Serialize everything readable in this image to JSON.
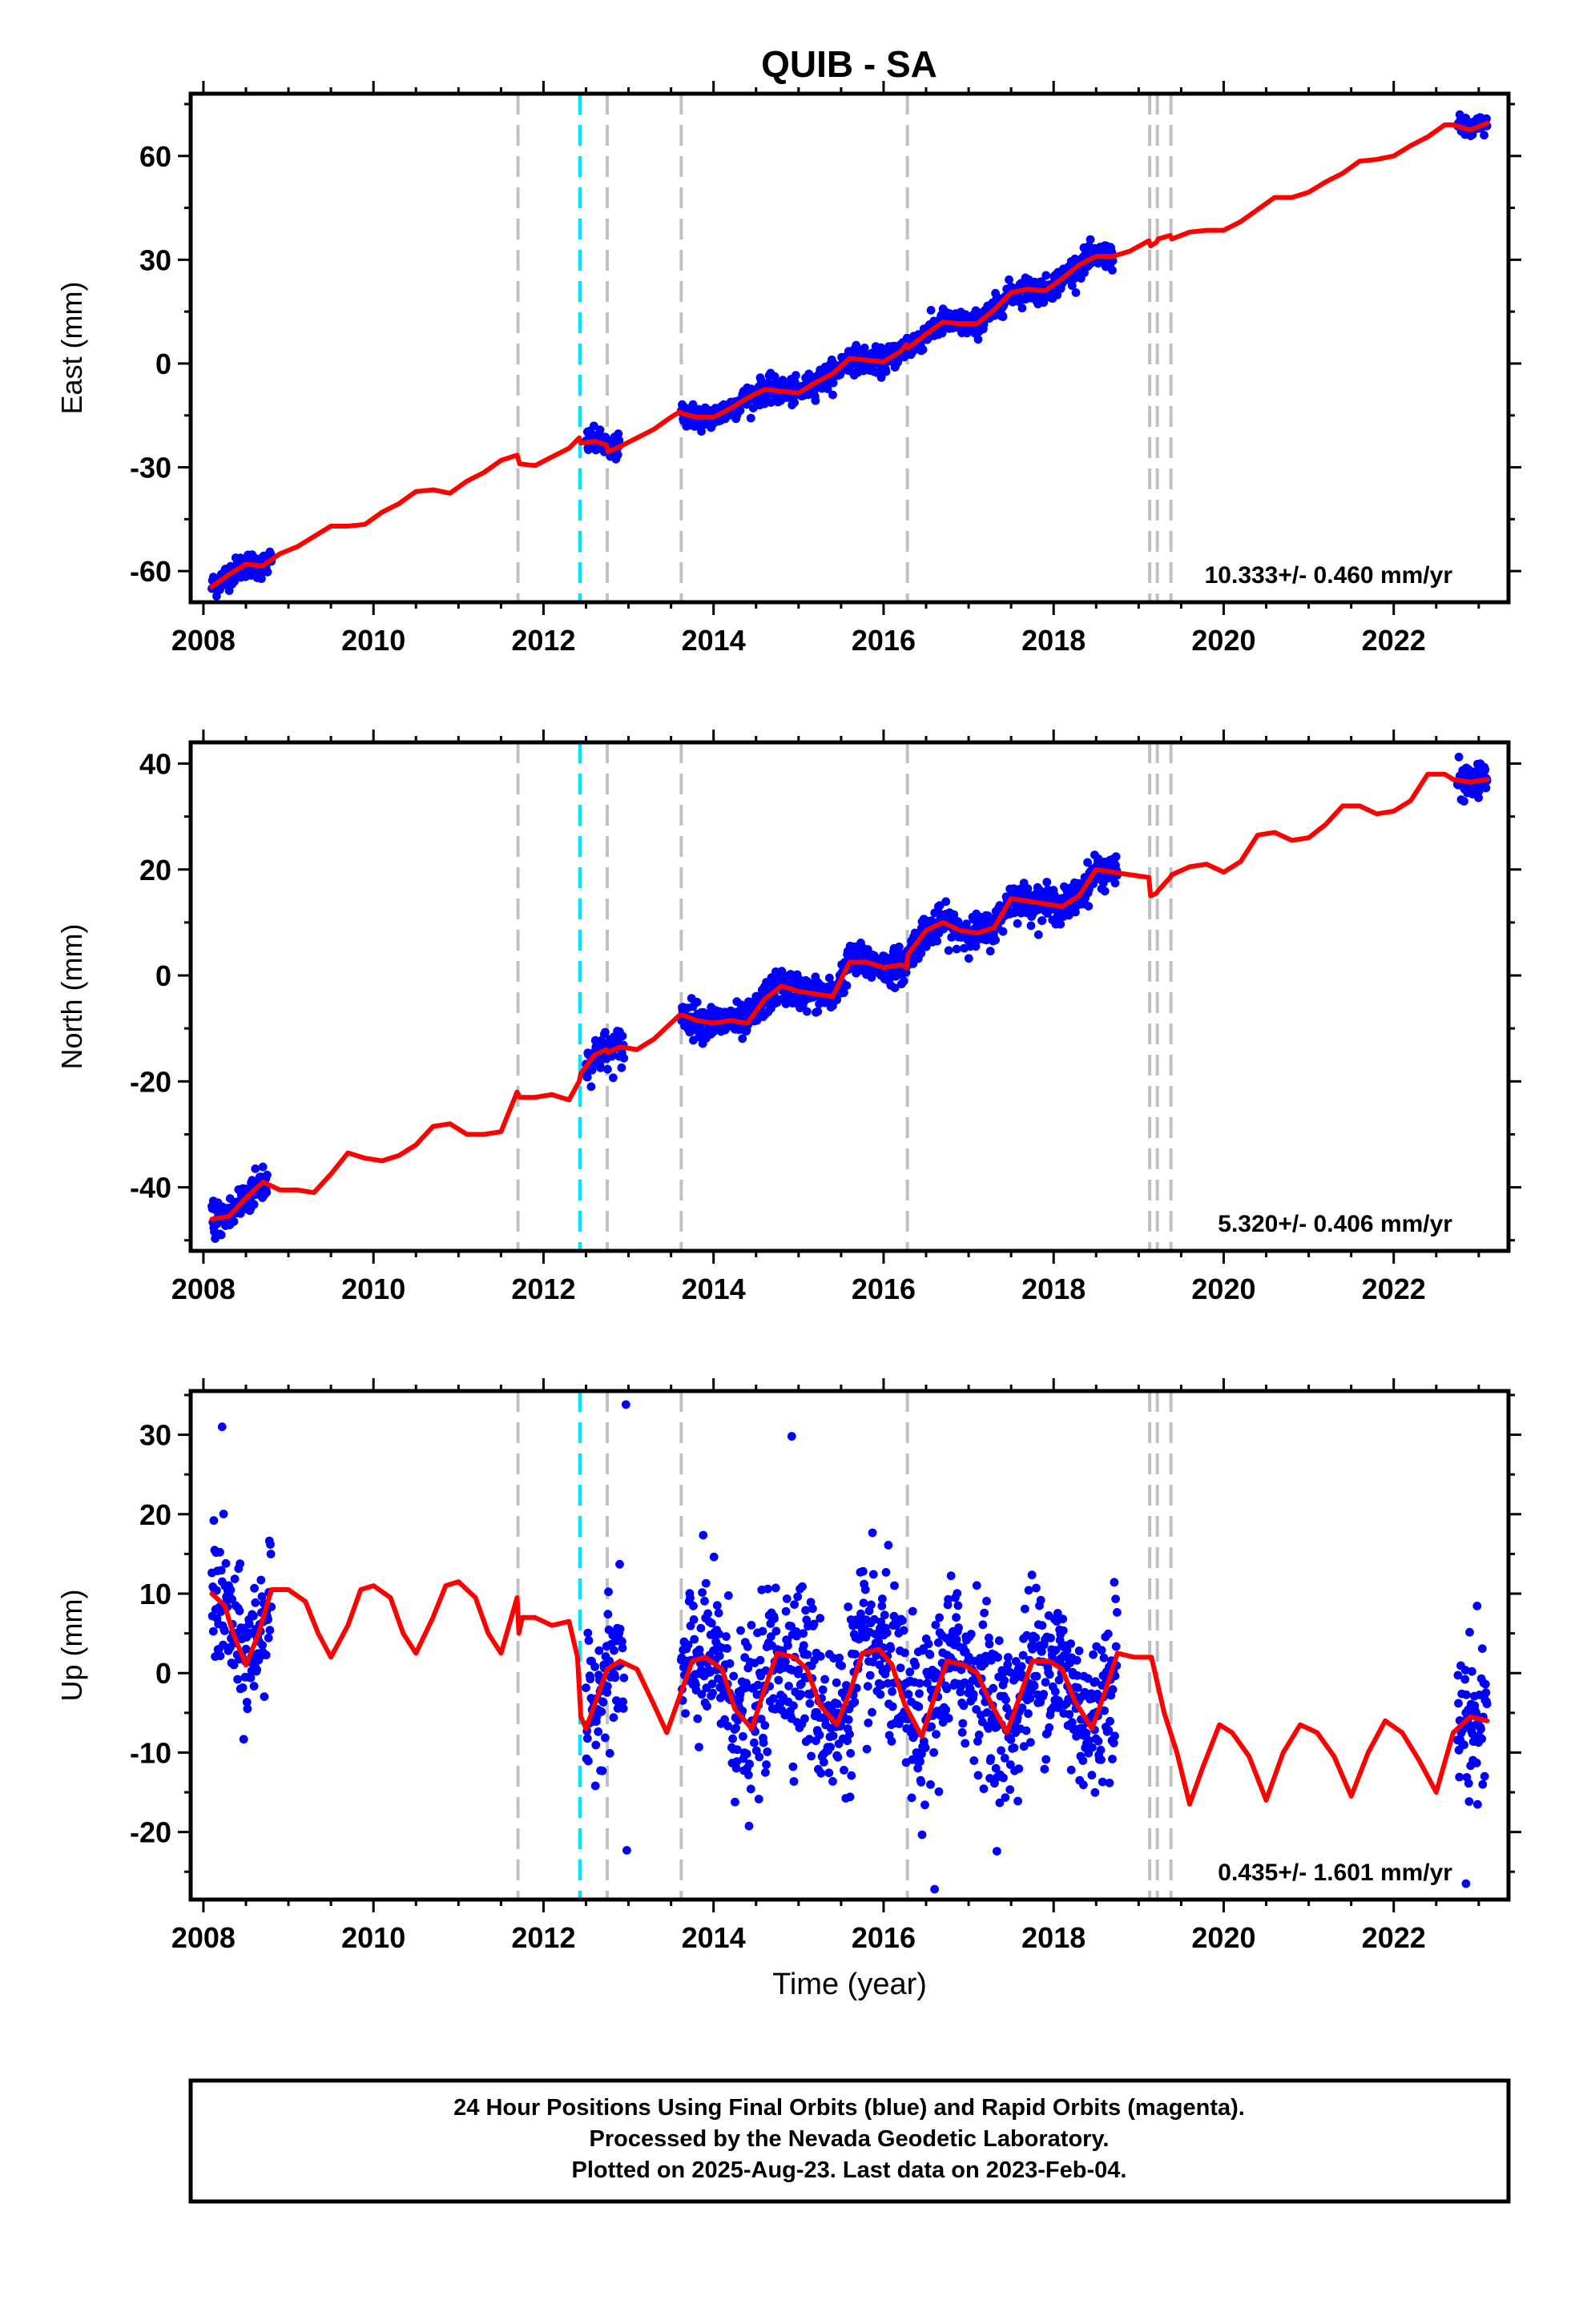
{
  "title": "QUIB - SA",
  "footer": {
    "line1": "24 Hour Positions Using Final Orbits (blue) and Rapid Orbits (magenta).",
    "line2": "Processed by the Nevada Geodetic Laboratory.",
    "line3": "Plotted on 2025-Aug-23. Last data on 2023-Feb-04."
  },
  "colors": {
    "observations": "#0000ff",
    "model": "#ff0000",
    "event_line": "#c0c0c0",
    "antenna_change_line": "#00e5ff"
  },
  "chart_data": [
    {
      "type": "scatter",
      "panel": "east",
      "ylabel": "East (mm)",
      "xlabel": "",
      "rate": "10.333+/- 0.460 mm/yr",
      "rate_value": 10.333,
      "xlim": [
        2007.85,
        2023.35
      ],
      "ylim": [
        -69,
        78
      ],
      "xticks": [
        2008,
        2010,
        2012,
        2014,
        2016,
        2018,
        2020,
        2022
      ],
      "yticks": [
        -60,
        -30,
        0,
        30,
        60
      ],
      "event_lines": [
        2011.7,
        2012.75,
        2013.62,
        2016.28,
        2019.13,
        2019.22,
        2019.38
      ],
      "antenna_lines": [
        2012.43
      ],
      "model": {
        "x": [
          2008.1,
          2008.3,
          2008.5,
          2008.7,
          2008.9,
          2009.1,
          2009.3,
          2009.5,
          2009.7,
          2009.9,
          2010.1,
          2010.3,
          2010.5,
          2010.7,
          2010.9,
          2011.1,
          2011.3,
          2011.5,
          2011.69,
          2011.72,
          2011.9,
          2012.1,
          2012.3,
          2012.42,
          2012.44,
          2012.6,
          2012.74,
          2012.76,
          2012.9,
          2013.1,
          2013.3,
          2013.5,
          2013.6,
          2013.64,
          2013.8,
          2014.0,
          2014.2,
          2014.4,
          2014.6,
          2014.8,
          2015.0,
          2015.2,
          2015.4,
          2015.6,
          2015.8,
          2016.0,
          2016.2,
          2016.27,
          2016.29,
          2016.5,
          2016.7,
          2016.9,
          2017.1,
          2017.3,
          2017.5,
          2017.7,
          2017.9,
          2018.1,
          2018.3,
          2018.5,
          2018.7,
          2018.9,
          2019.12,
          2019.14,
          2019.21,
          2019.23,
          2019.37,
          2019.39,
          2019.6,
          2019.8,
          2020.0,
          2020.2,
          2020.4,
          2020.6,
          2020.8,
          2021.0,
          2021.2,
          2021.4,
          2021.6,
          2021.8,
          2022.0,
          2022.2,
          2022.4,
          2022.6,
          2022.7,
          2022.9,
          2023.1
        ],
        "y": [
          -64.5,
          -61.0,
          -58.0,
          -58.5,
          -55.0,
          -53.0,
          -50.0,
          -47.0,
          -47.0,
          -46.5,
          -43.0,
          -40.5,
          -37.0,
          -36.5,
          -37.5,
          -34.0,
          -31.5,
          -28.0,
          -26.5,
          -29.0,
          -29.5,
          -27.0,
          -24.5,
          -21.5,
          -23.0,
          -22.5,
          -23.5,
          -25.5,
          -24.0,
          -21.5,
          -19.0,
          -15.5,
          -14.0,
          -14.5,
          -15.5,
          -15.5,
          -13.0,
          -10.0,
          -7.5,
          -8.0,
          -8.5,
          -5.5,
          -3.0,
          1.5,
          1.0,
          0.5,
          3.5,
          5.5,
          4.5,
          8.5,
          12.0,
          11.5,
          11.5,
          15.5,
          20.5,
          21.5,
          21.0,
          24.5,
          28.5,
          31.0,
          31.0,
          32.5,
          35.5,
          34.0,
          35.0,
          36.0,
          37.0,
          36.0,
          38.0,
          38.5,
          38.5,
          41.0,
          44.5,
          48.0,
          48.0,
          49.5,
          52.5,
          55.0,
          58.5,
          59.0,
          60.0,
          63.0,
          65.5,
          69.0,
          69.0,
          67.5,
          69.5
        ]
      },
      "observation_segments": [
        {
          "x0": 2008.1,
          "x1": 2008.8,
          "noise": 1.8
        },
        {
          "x0": 2012.5,
          "x1": 2012.9,
          "noise": 1.8
        },
        {
          "x0": 2013.62,
          "x1": 2018.7,
          "noise": 1.8
        },
        {
          "x0": 2022.75,
          "x1": 2023.1,
          "noise": 1.5
        }
      ]
    },
    {
      "type": "scatter",
      "panel": "north",
      "ylabel": "North (mm)",
      "xlabel": "",
      "rate": "5.320+/- 0.406 mm/yr",
      "rate_value": 5.32,
      "xlim": [
        2007.85,
        2023.35
      ],
      "ylim": [
        -52,
        44
      ],
      "xticks": [
        2008,
        2010,
        2012,
        2014,
        2016,
        2018,
        2020,
        2022
      ],
      "yticks": [
        -40,
        -20,
        0,
        20,
        40
      ],
      "event_lines": [
        2011.7,
        2012.75,
        2013.62,
        2016.28,
        2019.13,
        2019.22,
        2019.38
      ],
      "antenna_lines": [
        2012.43
      ],
      "model": {
        "x": [
          2008.1,
          2008.3,
          2008.5,
          2008.7,
          2008.9,
          2009.1,
          2009.3,
          2009.5,
          2009.7,
          2009.9,
          2010.1,
          2010.3,
          2010.5,
          2010.7,
          2010.9,
          2011.1,
          2011.3,
          2011.5,
          2011.69,
          2011.72,
          2011.9,
          2012.1,
          2012.3,
          2012.42,
          2012.44,
          2012.6,
          2012.74,
          2012.76,
          2012.9,
          2013.1,
          2013.3,
          2013.5,
          2013.6,
          2013.64,
          2013.8,
          2014.0,
          2014.2,
          2014.4,
          2014.6,
          2014.8,
          2015.0,
          2015.2,
          2015.4,
          2015.6,
          2015.8,
          2016.0,
          2016.2,
          2016.27,
          2016.29,
          2016.5,
          2016.7,
          2016.9,
          2017.1,
          2017.3,
          2017.5,
          2017.7,
          2017.9,
          2018.1,
          2018.3,
          2018.5,
          2018.7,
          2018.9,
          2019.12,
          2019.14,
          2019.21,
          2019.23,
          2019.37,
          2019.39,
          2019.6,
          2019.8,
          2020.0,
          2020.2,
          2020.4,
          2020.6,
          2020.8,
          2021.0,
          2021.2,
          2021.4,
          2021.6,
          2021.8,
          2022.0,
          2022.2,
          2022.4,
          2022.6,
          2022.7,
          2022.9,
          2023.1
        ],
        "y": [
          -46.0,
          -45.5,
          -42.0,
          -39.0,
          -40.5,
          -40.5,
          -41.0,
          -37.5,
          -33.5,
          -34.5,
          -35.0,
          -34.0,
          -32.0,
          -28.5,
          -28.0,
          -30.0,
          -30.0,
          -29.5,
          -22.0,
          -23.0,
          -23.0,
          -22.5,
          -23.5,
          -20.0,
          -18.5,
          -15.0,
          -14.0,
          -14.5,
          -13.5,
          -14.0,
          -12.0,
          -9.0,
          -7.5,
          -7.5,
          -8.5,
          -9.0,
          -8.5,
          -9.0,
          -4.5,
          -2.0,
          -3.0,
          -3.5,
          -4.0,
          2.5,
          2.5,
          1.5,
          2.0,
          1.5,
          4.0,
          8.5,
          10.0,
          8.5,
          8.0,
          9.0,
          14.5,
          14.0,
          13.5,
          13.0,
          15.0,
          20.0,
          19.5,
          19.0,
          18.5,
          15.0,
          15.5,
          16.0,
          18.5,
          19.0,
          20.5,
          21.0,
          19.5,
          21.5,
          26.5,
          27.0,
          25.5,
          26.0,
          28.5,
          32.0,
          32.0,
          30.5,
          31.0,
          33.0,
          38.0,
          38.0,
          37.0,
          36.5,
          37.0
        ]
      },
      "observation_segments": [
        {
          "x0": 2008.1,
          "x1": 2008.75,
          "noise": 1.8
        },
        {
          "x0": 2012.5,
          "x1": 2012.95,
          "noise": 1.8
        },
        {
          "x0": 2013.62,
          "x1": 2018.75,
          "noise": 1.6
        },
        {
          "x0": 2022.75,
          "x1": 2023.1,
          "noise": 1.6
        }
      ]
    },
    {
      "type": "scatter",
      "panel": "up",
      "ylabel": "Up (mm)",
      "xlabel": "Time (year)",
      "rate": "0.435+/- 1.601 mm/yr",
      "rate_value": 0.435,
      "xlim": [
        2007.85,
        2023.35
      ],
      "ylim": [
        -28.5,
        35.5
      ],
      "xticks": [
        2008,
        2010,
        2012,
        2014,
        2016,
        2018,
        2020,
        2022
      ],
      "yticks": [
        -20,
        -10,
        0,
        10,
        20,
        30
      ],
      "event_lines": [
        2011.7,
        2012.75,
        2013.62,
        2016.28,
        2019.13,
        2019.22,
        2019.38
      ],
      "antenna_lines": [
        2012.43
      ],
      "model": {
        "x": [
          2008.1,
          2008.25,
          2008.35,
          2008.5,
          2008.65,
          2008.8,
          2009.0,
          2009.2,
          2009.35,
          2009.5,
          2009.7,
          2009.85,
          2010.0,
          2010.2,
          2010.35,
          2010.5,
          2010.7,
          2010.85,
          2011.0,
          2011.2,
          2011.35,
          2011.5,
          2011.69,
          2011.71,
          2011.75,
          2011.9,
          2012.1,
          2012.3,
          2012.4,
          2012.44,
          2012.5,
          2012.6,
          2012.75,
          2012.9,
          2013.1,
          2013.3,
          2013.45,
          2013.6,
          2013.75,
          2013.9,
          2014.1,
          2014.25,
          2014.45,
          2014.6,
          2014.75,
          2014.95,
          2015.1,
          2015.25,
          2015.45,
          2015.6,
          2015.75,
          2015.95,
          2016.1,
          2016.25,
          2016.45,
          2016.6,
          2016.75,
          2016.95,
          2017.1,
          2017.25,
          2017.45,
          2017.6,
          2017.75,
          2017.95,
          2018.1,
          2018.25,
          2018.45,
          2018.6,
          2018.75,
          2018.95,
          2019.15,
          2019.3,
          2019.45,
          2019.6,
          2019.75,
          2019.95,
          2020.1,
          2020.3,
          2020.5,
          2020.7,
          2020.9,
          2021.1,
          2021.3,
          2021.5,
          2021.7,
          2021.9,
          2022.1,
          2022.3,
          2022.5,
          2022.7,
          2022.9,
          2023.1
        ],
        "y": [
          10.0,
          8.5,
          5.0,
          1.0,
          5.0,
          10.5,
          10.5,
          9.0,
          5.0,
          2.0,
          6.0,
          10.5,
          11.0,
          9.5,
          5.0,
          2.5,
          7.0,
          11.0,
          11.5,
          9.5,
          5.0,
          2.5,
          9.5,
          5.0,
          7.0,
          7.0,
          6.0,
          6.5,
          2.0,
          -5.5,
          -7.0,
          -4.0,
          0.5,
          1.5,
          0.5,
          -4.0,
          -7.5,
          -3.0,
          1.5,
          2.0,
          0.5,
          -4.5,
          -7.0,
          -2.0,
          2.5,
          2.0,
          0.5,
          -4.0,
          -6.5,
          -2.5,
          2.5,
          3.0,
          1.0,
          -4.0,
          -8.0,
          -3.0,
          1.5,
          1.0,
          0.0,
          -3.5,
          -7.5,
          -3.0,
          1.5,
          1.5,
          0.5,
          -3.5,
          -7.0,
          -2.5,
          2.5,
          2.0,
          2.0,
          -5.0,
          -10.0,
          -16.5,
          -12.0,
          -6.5,
          -7.5,
          -10.5,
          -16.0,
          -10.0,
          -6.5,
          -7.5,
          -10.5,
          -15.5,
          -10.0,
          -6.0,
          -7.5,
          -11.0,
          -15.0,
          -7.5,
          -5.5,
          -6.0
        ]
      },
      "observation_segments": [
        {
          "x0": 2008.1,
          "x1": 2008.8,
          "noise": 4.2
        },
        {
          "x0": 2012.5,
          "x1": 2012.95,
          "noise": 4.2
        },
        {
          "x0": 2013.62,
          "x1": 2018.75,
          "noise": 5.2
        },
        {
          "x0": 2022.75,
          "x1": 2023.1,
          "noise": 5.0
        }
      ],
      "outliers": [
        {
          "x": 2008.22,
          "y": 31.0
        },
        {
          "x": 2012.97,
          "y": 33.8
        },
        {
          "x": 2014.92,
          "y": 29.8
        },
        {
          "x": 2016.6,
          "y": -27.2
        },
        {
          "x": 2012.98,
          "y": -22.3
        },
        {
          "x": 2022.85,
          "y": -26.5
        }
      ]
    }
  ]
}
